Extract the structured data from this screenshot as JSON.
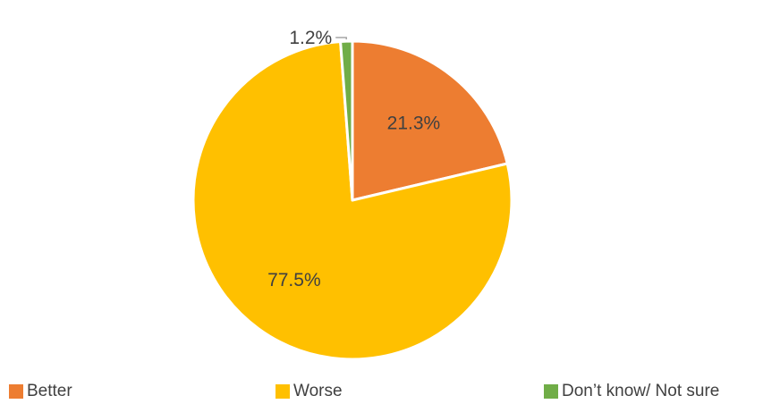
{
  "chart_data": {
    "type": "pie",
    "categories": [
      "Better",
      "Worse",
      "Don’t know/ Not sure"
    ],
    "values": [
      21.3,
      77.5,
      1.2
    ],
    "value_labels": [
      "21.3%",
      "77.5%",
      "1.2%"
    ],
    "colors": [
      "#ED7D31",
      "#FFC000",
      "#70AD47"
    ],
    "start_angle_deg": 0,
    "direction": "clockwise",
    "legend_position": "bottom"
  }
}
